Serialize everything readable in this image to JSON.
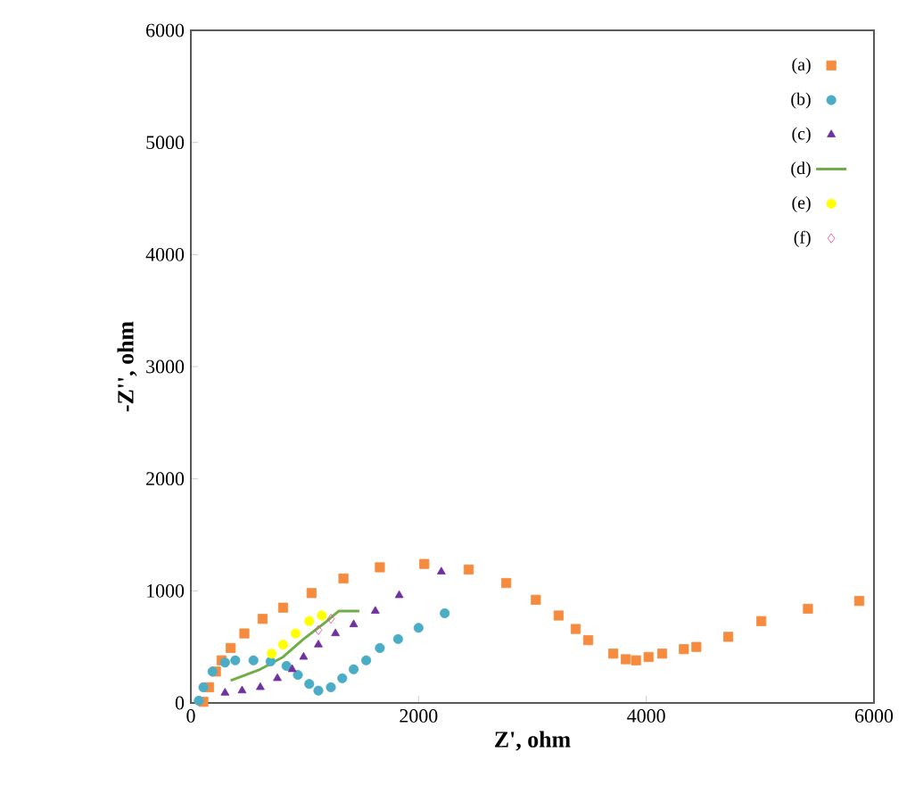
{
  "chart_data": {
    "type": "scatter",
    "xlabel": "Z', ohm",
    "ylabel": "-Z'', ohm",
    "xlim": [
      0,
      6000
    ],
    "ylim": [
      0,
      6000
    ],
    "xticks": [
      0,
      2000,
      4000,
      6000
    ],
    "yticks": [
      0,
      1000,
      2000,
      3000,
      4000,
      5000,
      6000
    ],
    "grid": false,
    "legend": "top right",
    "series": [
      {
        "name": "(a)",
        "marker": "square",
        "color": "#f58b3f",
        "x": [
          110,
          160,
          220,
          270,
          350,
          470,
          630,
          810,
          1060,
          1340,
          1660,
          2050,
          2440,
          2770,
          3030,
          3230,
          3380,
          3490,
          3710,
          3820,
          3910,
          4020,
          4140,
          4330,
          4440,
          4720,
          5010,
          5420,
          5870
        ],
        "values": [
          10,
          140,
          280,
          380,
          490,
          620,
          750,
          850,
          980,
          1110,
          1210,
          1240,
          1190,
          1070,
          920,
          780,
          660,
          560,
          440,
          390,
          380,
          410,
          440,
          480,
          500,
          590,
          730,
          840,
          910
        ]
      },
      {
        "name": "(b)",
        "marker": "circle",
        "color": "#4bacc6",
        "x": [
          70,
          110,
          190,
          300,
          390,
          550,
          700,
          840,
          940,
          1040,
          1120,
          1230,
          1330,
          1430,
          1540,
          1660,
          1820,
          2000,
          2230
        ],
        "values": [
          20,
          140,
          280,
          360,
          380,
          380,
          370,
          330,
          250,
          170,
          110,
          140,
          220,
          300,
          380,
          490,
          570,
          670,
          800
        ]
      },
      {
        "name": "(c)",
        "marker": "triangle",
        "color": "#7030a0",
        "x": [
          300,
          450,
          610,
          760,
          890,
          990,
          1120,
          1270,
          1430,
          1620,
          1830,
          2200
        ],
        "values": [
          90,
          110,
          140,
          220,
          300,
          410,
          520,
          620,
          700,
          820,
          960,
          1170
        ]
      },
      {
        "name": "(d)",
        "type": "line",
        "marker": "none",
        "color": "#70ad47",
        "x": [
          350,
          610,
          810,
          990,
          1170,
          1300,
          1480
        ],
        "values": [
          200,
          300,
          410,
          570,
          710,
          820,
          820
        ]
      },
      {
        "name": "(e)",
        "marker": "circle",
        "color": "#ffff00",
        "x": [
          710,
          810,
          920,
          1040,
          1150
        ],
        "values": [
          440,
          520,
          620,
          730,
          780
        ]
      },
      {
        "name": "(f)",
        "marker": "diamond",
        "color": "#e8409a",
        "x": [
          1120,
          1230
        ],
        "values": [
          650,
          750
        ]
      }
    ]
  }
}
